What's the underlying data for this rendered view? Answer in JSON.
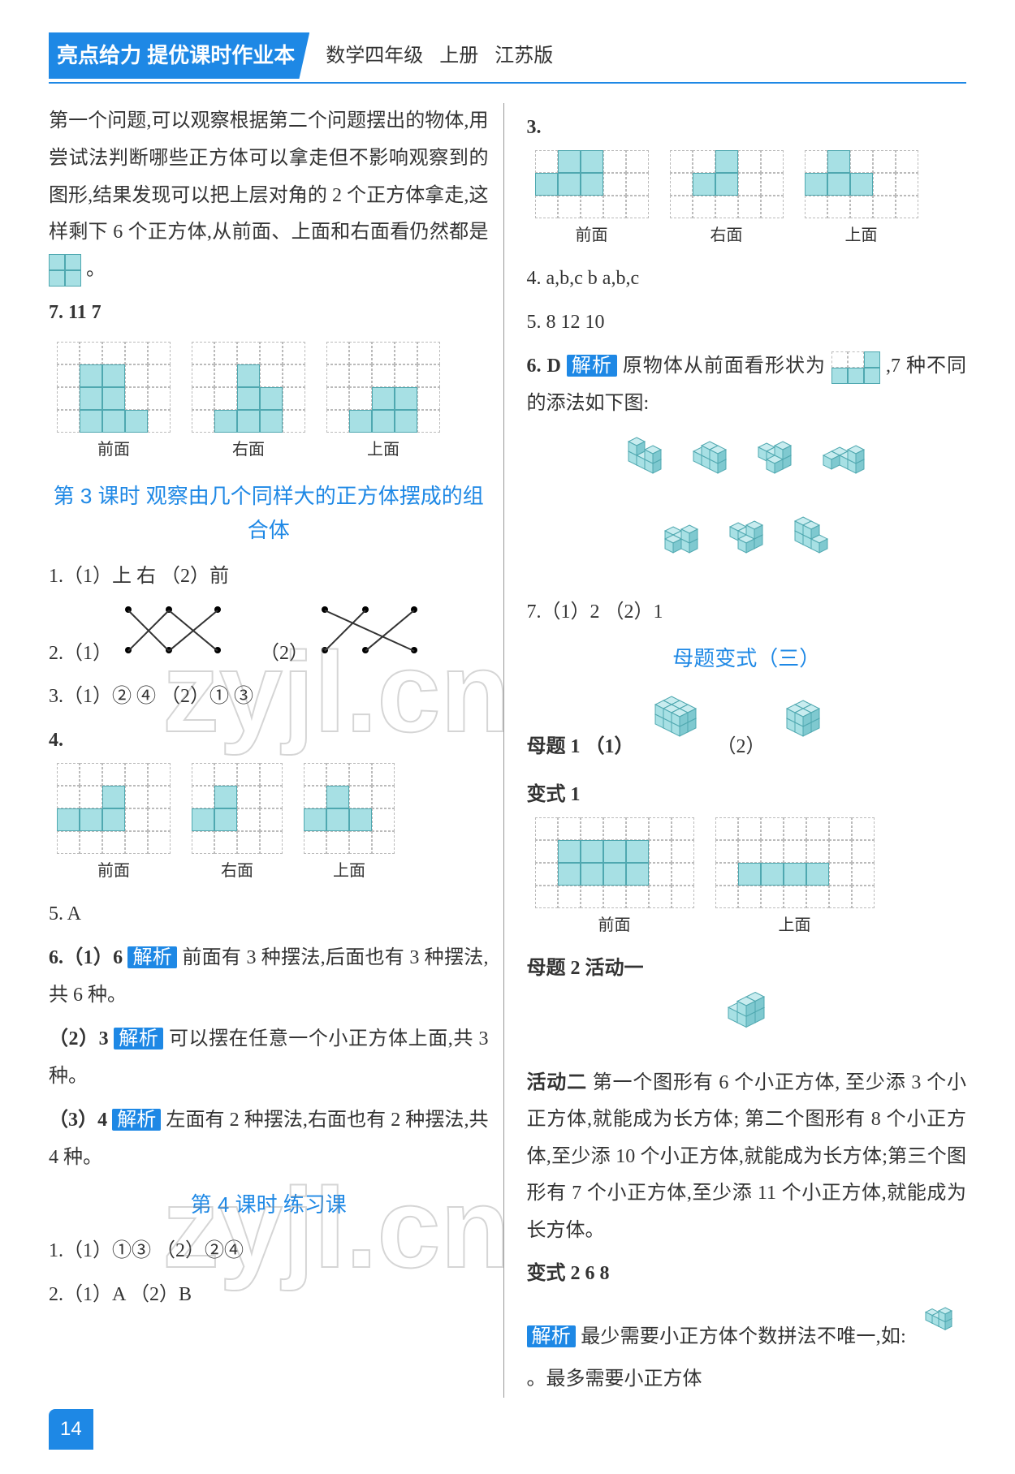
{
  "header": {
    "badge": "亮点给力 提优课时作业本",
    "subject": "数学四年级",
    "vol": "上册",
    "edition": "江苏版"
  },
  "left": {
    "intro": "第一个问题,可以观察根据第二个问题摆出的物体,用尝试法判断哪些正方体可以拿走但不影响观察到的图形,结果发现可以把上层对角的 2 个正方体拿走,这样剩下 6 个正方体,从前面、上面和右面看仍然都是",
    "intro_tail": "。",
    "q7": "7. 11   7",
    "q7_labels": [
      "前面",
      "右面",
      "上面"
    ],
    "section3": "第 3 课时   观察由几个同样大的正方体摆成的组合体",
    "s3_q1": "1.（1）上   右   （2）前",
    "s3_q2": "2.（1）",
    "s3_q2b": "（2）",
    "s3_q3": "3.（1）②   ④   （2）①   ③",
    "s3_q4": "4.",
    "s3_q4_labels": [
      "前面",
      "右面",
      "上面"
    ],
    "s3_q5": "5. A",
    "s3_q6a": "6.（1）6   ",
    "s3_q6a_t": "前面有 3 种摆法,后面也有 3 种摆法,共 6 种。",
    "s3_q6b": "（2）3   ",
    "s3_q6b_t": "可以摆在任意一个小正方体上面,共 3 种。",
    "s3_q6c": "（3）4   ",
    "s3_q6c_t": "左面有 2 种摆法,右面也有 2 种摆法,共 4 种。",
    "section4": "第 4 课时   练习课",
    "s4_q1": "1.（1）①③   （2）②④",
    "s4_q2": "2.（1）A   （2）B"
  },
  "right": {
    "q3": "3.",
    "q3_labels": [
      "前面",
      "右面",
      "上面"
    ],
    "q4": "4. a,b,c   b   a,b,c",
    "q5": "5. 8   12   10",
    "q6": "6. D   ",
    "q6_t": "原物体从前面看形状为",
    "q6_tail": ",7 种不同的添法如下图:",
    "q7": "7.（1）2   （2）1",
    "section_var": "母题变式（三）",
    "mt1": "母题 1   （1）",
    "mt1b": "（2）",
    "var1": "变式 1",
    "var1_labels": [
      "前面",
      "上面"
    ],
    "mt2": "母题 2   活动一",
    "act2_title": "活动二",
    "act2_text": "第一个图形有 6 个小正方体, 至少添 3 个小正方体,就能成为长方体; 第二个图形有 8 个小正方体,至少添 10 个小正方体,就能成为长方体;第三个图形有 7 个小正方体,至少添 11 个小正方体,就能成为长方体。",
    "var2": "变式 2   6   8",
    "var2_expl": "最少需要小正方体个数拼法不唯一,如:",
    "var2_tail": "。最多需要小正方体"
  },
  "page": "14",
  "watermark": "zyjl.cn",
  "colors": {
    "accent": "#1e88e5",
    "cube_fill": "#a7e0e4",
    "cube_border": "#4fa8b0",
    "cube_top": "#c8ecef",
    "cube_side": "#7fc9d0"
  },
  "tag_label": "解析"
}
